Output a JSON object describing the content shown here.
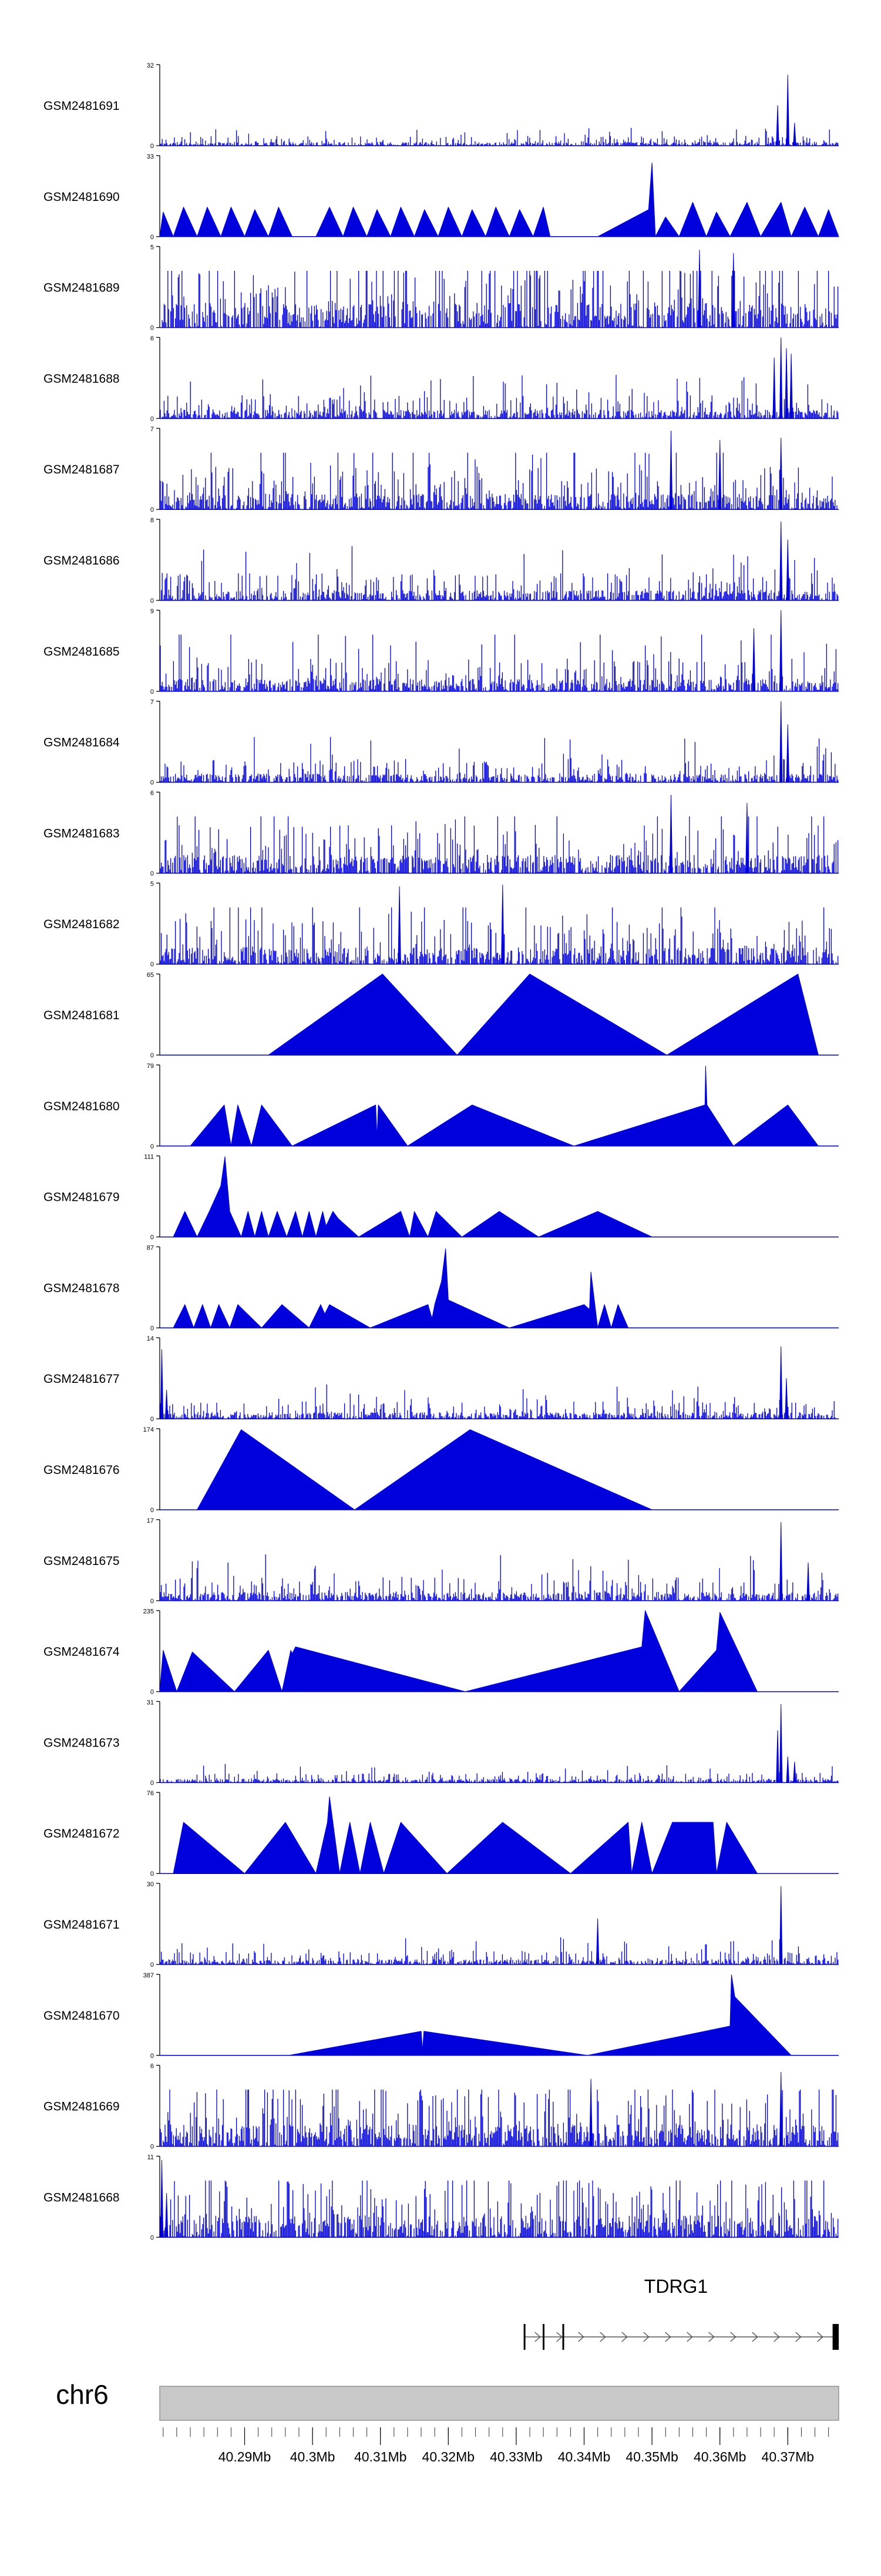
{
  "page": {
    "chromosome": "chr6"
  },
  "gene": {
    "name": "TDRG1",
    "strand": "+"
  },
  "colors": {
    "signal": "#0000dd",
    "axis": "#000000",
    "ideogram": "#c8c8c8",
    "ideogram_border": "#808080",
    "intron": "#555555"
  },
  "chart_data": {
    "type": "area",
    "title": "",
    "xlabel": "chr6",
    "x_range": [
      40.2775,
      40.3775
    ],
    "x_unit": "Mb",
    "x_ticks": [
      "40.29Mb",
      "40.3Mb",
      "40.31Mb",
      "40.32Mb",
      "40.33Mb",
      "40.34Mb",
      "40.35Mb",
      "40.36Mb",
      "40.37Mb"
    ],
    "x_tick_values": [
      40.29,
      40.3,
      40.31,
      40.32,
      40.33,
      40.34,
      40.35,
      40.36,
      40.37
    ],
    "tracks": [
      {
        "name": "GSM2481691",
        "ymax": 32,
        "kind": "dense",
        "seed": 11,
        "base": 0.05,
        "spikes": [
          [
            40.3685,
            16
          ],
          [
            40.37,
            28
          ],
          [
            40.371,
            9
          ]
        ]
      },
      {
        "name": "GSM2481690",
        "ymax": 33,
        "kind": "peaks",
        "points": [
          [
            40.2775,
            0
          ],
          [
            40.278,
            10
          ],
          [
            40.2795,
            0
          ],
          [
            40.281,
            12
          ],
          [
            40.283,
            0
          ],
          [
            40.2845,
            12
          ],
          [
            40.2865,
            0
          ],
          [
            40.288,
            12
          ],
          [
            40.29,
            0
          ],
          [
            40.2915,
            11
          ],
          [
            40.2935,
            0
          ],
          [
            40.295,
            12
          ],
          [
            40.297,
            0
          ],
          [
            40.3005,
            0
          ],
          [
            40.3025,
            12
          ],
          [
            40.3045,
            0
          ],
          [
            40.306,
            12
          ],
          [
            40.308,
            0
          ],
          [
            40.3095,
            11
          ],
          [
            40.3115,
            0
          ],
          [
            40.313,
            12
          ],
          [
            40.315,
            0
          ],
          [
            40.3165,
            11
          ],
          [
            40.3185,
            0
          ],
          [
            40.32,
            12
          ],
          [
            40.322,
            0
          ],
          [
            40.3235,
            11
          ],
          [
            40.3255,
            0
          ],
          [
            40.327,
            12
          ],
          [
            40.329,
            0
          ],
          [
            40.3305,
            11
          ],
          [
            40.3325,
            0
          ],
          [
            40.334,
            12
          ],
          [
            40.335,
            0
          ],
          [
            40.342,
            0
          ],
          [
            40.3495,
            11
          ],
          [
            40.35,
            30
          ],
          [
            40.3505,
            0
          ],
          [
            40.352,
            8
          ],
          [
            40.354,
            0
          ],
          [
            40.356,
            14
          ],
          [
            40.358,
            0
          ],
          [
            40.3595,
            10
          ],
          [
            40.3615,
            0
          ],
          [
            40.364,
            14
          ],
          [
            40.366,
            0
          ],
          [
            40.369,
            14
          ],
          [
            40.3705,
            0
          ],
          [
            40.3725,
            12
          ],
          [
            40.3745,
            0
          ],
          [
            40.376,
            11
          ],
          [
            40.3775,
            0
          ]
        ]
      },
      {
        "name": "GSM2481689",
        "ymax": 5,
        "kind": "dense",
        "seed": 23,
        "base": 0.34,
        "spikes": [
          [
            40.357,
            4.8
          ],
          [
            40.362,
            4.6
          ]
        ]
      },
      {
        "name": "GSM2481688",
        "ymax": 6,
        "kind": "dense",
        "seed": 37,
        "base": 0.12,
        "spikes": [
          [
            40.368,
            4.5
          ],
          [
            40.369,
            6
          ],
          [
            40.3698,
            5.2
          ],
          [
            40.3705,
            4.8
          ]
        ]
      },
      {
        "name": "GSM2481687",
        "ymax": 7,
        "kind": "dense",
        "seed": 41,
        "base": 0.22,
        "spikes": [
          [
            40.3528,
            6.8
          ],
          [
            40.36,
            6.0
          ],
          [
            40.369,
            6.2
          ]
        ]
      },
      {
        "name": "GSM2481686",
        "ymax": 8,
        "kind": "dense",
        "seed": 53,
        "base": 0.14,
        "spikes": [
          [
            40.369,
            7.8
          ],
          [
            40.37,
            6.0
          ]
        ]
      },
      {
        "name": "GSM2481685",
        "ymax": 9,
        "kind": "dense",
        "seed": 67,
        "base": 0.17,
        "spikes": [
          [
            40.365,
            7
          ],
          [
            40.369,
            9
          ]
        ]
      },
      {
        "name": "GSM2481684",
        "ymax": 7,
        "kind": "dense",
        "seed": 71,
        "base": 0.12,
        "spikes": [
          [
            40.369,
            7
          ],
          [
            40.37,
            5
          ]
        ]
      },
      {
        "name": "GSM2481683",
        "ymax": 6,
        "kind": "dense",
        "seed": 83,
        "base": 0.25,
        "spikes": [
          [
            40.3528,
            5.8
          ],
          [
            40.364,
            5.2
          ]
        ]
      },
      {
        "name": "GSM2481682",
        "ymax": 5,
        "kind": "dense",
        "seed": 97,
        "base": 0.23,
        "spikes": [
          [
            40.3128,
            4.8
          ],
          [
            40.328,
            4.9
          ]
        ]
      },
      {
        "name": "GSM2481681",
        "ymax": 65,
        "kind": "peaks",
        "points": [
          [
            40.2935,
            0
          ],
          [
            40.3103,
            65
          ],
          [
            40.3213,
            0
          ],
          [
            40.332,
            65
          ],
          [
            40.3522,
            0
          ],
          [
            40.3715,
            65
          ],
          [
            40.3745,
            0
          ]
        ]
      },
      {
        "name": "GSM2481680",
        "ymax": 79,
        "kind": "peaks",
        "points": [
          [
            40.282,
            0
          ],
          [
            40.287,
            40
          ],
          [
            40.288,
            0
          ],
          [
            40.289,
            40
          ],
          [
            40.291,
            0
          ],
          [
            40.2925,
            40
          ],
          [
            40.297,
            0
          ],
          [
            40.3093,
            40
          ],
          [
            40.3095,
            8
          ],
          [
            40.3097,
            40
          ],
          [
            40.314,
            0
          ],
          [
            40.3235,
            40
          ],
          [
            40.3385,
            0
          ],
          [
            40.3578,
            40
          ],
          [
            40.3579,
            78
          ],
          [
            40.3581,
            40
          ],
          [
            40.362,
            0
          ],
          [
            40.37,
            40
          ],
          [
            40.3745,
            0
          ]
        ]
      },
      {
        "name": "GSM2481679",
        "ymax": 111,
        "kind": "peaks",
        "points": [
          [
            40.2795,
            0
          ],
          [
            40.2812,
            35
          ],
          [
            40.283,
            0
          ],
          [
            40.2848,
            35
          ],
          [
            40.2865,
            70
          ],
          [
            40.2871,
            110
          ],
          [
            40.2878,
            35
          ],
          [
            40.2895,
            0
          ],
          [
            40.2905,
            35
          ],
          [
            40.2915,
            0
          ],
          [
            40.2925,
            35
          ],
          [
            40.2935,
            0
          ],
          [
            40.2948,
            35
          ],
          [
            40.2962,
            0
          ],
          [
            40.2975,
            35
          ],
          [
            40.2985,
            0
          ],
          [
            40.2995,
            35
          ],
          [
            40.3005,
            0
          ],
          [
            40.3015,
            35
          ],
          [
            40.302,
            15
          ],
          [
            40.303,
            35
          ],
          [
            40.3038,
            25
          ],
          [
            40.3068,
            0
          ],
          [
            40.313,
            35
          ],
          [
            40.3143,
            0
          ],
          [
            40.315,
            35
          ],
          [
            40.317,
            0
          ],
          [
            40.3182,
            35
          ],
          [
            40.322,
            0
          ],
          [
            40.3275,
            35
          ],
          [
            40.3333,
            0
          ],
          [
            40.342,
            35
          ],
          [
            40.35,
            0
          ]
        ]
      },
      {
        "name": "GSM2481678",
        "ymax": 87,
        "kind": "peaks",
        "points": [
          [
            40.2795,
            0
          ],
          [
            40.2812,
            25
          ],
          [
            40.2825,
            0
          ],
          [
            40.2838,
            25
          ],
          [
            40.285,
            0
          ],
          [
            40.2862,
            25
          ],
          [
            40.2878,
            0
          ],
          [
            40.289,
            25
          ],
          [
            40.2925,
            0
          ],
          [
            40.2955,
            25
          ],
          [
            40.2995,
            0
          ],
          [
            40.3012,
            25
          ],
          [
            40.3018,
            15
          ],
          [
            40.3025,
            25
          ],
          [
            40.3085,
            0
          ],
          [
            40.317,
            25
          ],
          [
            40.3176,
            10
          ],
          [
            40.318,
            25
          ],
          [
            40.319,
            50
          ],
          [
            40.3196,
            85
          ],
          [
            40.32,
            30
          ],
          [
            40.329,
            0
          ],
          [
            40.34,
            25
          ],
          [
            40.3408,
            20
          ],
          [
            40.341,
            60
          ],
          [
            40.342,
            0
          ],
          [
            40.343,
            25
          ],
          [
            40.344,
            0
          ],
          [
            40.345,
            25
          ],
          [
            40.3465,
            0
          ]
        ]
      },
      {
        "name": "GSM2481677",
        "ymax": 14,
        "kind": "dense",
        "seed": 109,
        "base": 0.09,
        "spikes": [
          [
            40.2778,
            12
          ],
          [
            40.2785,
            5
          ],
          [
            40.369,
            12.5
          ],
          [
            40.3698,
            7
          ]
        ]
      },
      {
        "name": "GSM2481676",
        "ymax": 174,
        "kind": "peaks",
        "points": [
          [
            40.283,
            0
          ],
          [
            40.2895,
            172
          ],
          [
            40.3062,
            0
          ],
          [
            40.3232,
            172
          ],
          [
            40.35,
            0
          ]
        ]
      },
      {
        "name": "GSM2481675",
        "ymax": 17,
        "kind": "dense",
        "seed": 127,
        "base": 0.12,
        "spikes": [
          [
            40.369,
            16.5
          ],
          [
            40.373,
            8
          ]
        ]
      },
      {
        "name": "GSM2481674",
        "ymax": 235,
        "kind": "peaks",
        "points": [
          [
            40.2775,
            0
          ],
          [
            40.278,
            120
          ],
          [
            40.28,
            0
          ],
          [
            40.2823,
            115
          ],
          [
            40.2885,
            0
          ],
          [
            40.2935,
            120
          ],
          [
            40.2955,
            0
          ],
          [
            40.2968,
            120
          ],
          [
            40.297,
            110
          ],
          [
            40.2975,
            130
          ],
          [
            40.3225,
            0
          ],
          [
            40.3485,
            130
          ],
          [
            40.349,
            235
          ],
          [
            40.354,
            0
          ],
          [
            40.3595,
            120
          ],
          [
            40.36,
            230
          ],
          [
            40.3655,
            0
          ]
        ]
      },
      {
        "name": "GSM2481673",
        "ymax": 31,
        "kind": "dense",
        "seed": 131,
        "base": 0.05,
        "spikes": [
          [
            40.3685,
            20
          ],
          [
            40.369,
            30
          ],
          [
            40.37,
            10
          ],
          [
            40.371,
            8
          ]
        ]
      },
      {
        "name": "GSM2481672",
        "ymax": 76,
        "kind": "peaks",
        "points": [
          [
            40.2795,
            0
          ],
          [
            40.281,
            48
          ],
          [
            40.29,
            0
          ],
          [
            40.296,
            48
          ],
          [
            40.3005,
            0
          ],
          [
            40.3022,
            48
          ],
          [
            40.3025,
            72
          ],
          [
            40.303,
            48
          ],
          [
            40.304,
            0
          ],
          [
            40.3055,
            48
          ],
          [
            40.307,
            0
          ],
          [
            40.3085,
            48
          ],
          [
            40.3105,
            0
          ],
          [
            40.313,
            48
          ],
          [
            40.3198,
            0
          ],
          [
            40.328,
            48
          ],
          [
            40.338,
            0
          ],
          [
            40.3465,
            48
          ],
          [
            40.347,
            0
          ],
          [
            40.3485,
            48
          ],
          [
            40.35,
            0
          ],
          [
            40.353,
            48
          ],
          [
            40.359,
            48
          ],
          [
            40.3595,
            0
          ],
          [
            40.361,
            48
          ],
          [
            40.3655,
            0
          ]
        ]
      },
      {
        "name": "GSM2481671",
        "ymax": 30,
        "kind": "dense",
        "seed": 149,
        "base": 0.07,
        "spikes": [
          [
            40.342,
            17
          ],
          [
            40.369,
            29
          ]
        ]
      },
      {
        "name": "GSM2481670",
        "ymax": 387,
        "kind": "peaks",
        "points": [
          [
            40.2965,
            0
          ],
          [
            40.316,
            115
          ],
          [
            40.3162,
            20
          ],
          [
            40.3164,
            115
          ],
          [
            40.3405,
            0
          ],
          [
            40.3615,
            140
          ],
          [
            40.3617,
            385
          ],
          [
            40.3622,
            280
          ],
          [
            40.3705,
            0
          ]
        ]
      },
      {
        "name": "GSM2481669",
        "ymax": 6,
        "kind": "dense",
        "seed": 163,
        "base": 0.3,
        "spikes": [
          [
            40.369,
            5.5
          ],
          [
            40.341,
            5
          ]
        ]
      },
      {
        "name": "GSM2481668",
        "ymax": 11,
        "kind": "dense",
        "seed": 179,
        "base": 0.3,
        "spikes": [
          [
            40.2778,
            10.5
          ],
          [
            40.2785,
            6
          ]
        ]
      }
    ],
    "gene": {
      "name": "TDRG1",
      "start": 40.3311,
      "end": 40.3775,
      "exons": [
        [
          40.3311,
          40.3313
        ],
        [
          40.3339,
          40.334
        ],
        [
          40.3368,
          40.337
        ],
        [
          40.3766,
          40.3775
        ]
      ]
    }
  }
}
